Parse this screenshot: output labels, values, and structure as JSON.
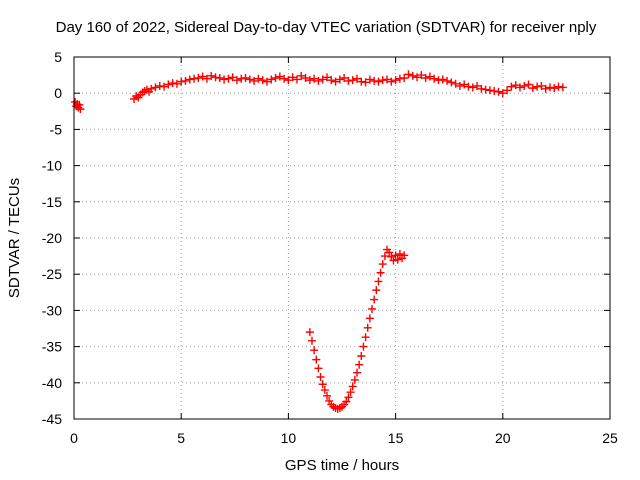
{
  "chart_data": {
    "type": "scatter",
    "title": "Day 160 of 2022, Sidereal Day-to-day VTEC variation (SDTVAR) for receiver nply",
    "xlabel": "GPS time / hours",
    "ylabel": "SDTVAR / TECUs",
    "xlim": [
      0,
      25
    ],
    "ylim": [
      -45,
      5
    ],
    "xticks": [
      0,
      5,
      10,
      15,
      20,
      25
    ],
    "yticks": [
      5,
      0,
      -5,
      -10,
      -15,
      -20,
      -25,
      -30,
      -35,
      -40,
      -45
    ],
    "xtick_labels": [
      "0",
      "5",
      "10",
      "15",
      "20",
      "25"
    ],
    "ytick_labels": [
      "5",
      "0",
      "-5",
      "-10",
      "-15",
      "-20",
      "-25",
      "-30",
      "-35",
      "-40",
      "-45"
    ],
    "grid": true,
    "marker": "plus",
    "series": [
      {
        "name": "SDTVAR",
        "color": "#ff0000",
        "x": [
          0.05,
          0.1,
          0.15,
          0.2,
          0.25,
          0.3,
          2.8,
          2.9,
          3.0,
          3.1,
          3.2,
          3.3,
          3.4,
          3.5,
          3.6,
          3.8,
          4.0,
          4.2,
          4.4,
          4.6,
          4.8,
          5.0,
          5.2,
          5.4,
          5.6,
          5.8,
          6.0,
          6.2,
          6.4,
          6.6,
          6.8,
          7.0,
          7.2,
          7.4,
          7.6,
          7.8,
          8.0,
          8.2,
          8.4,
          8.6,
          8.8,
          9.0,
          9.2,
          9.4,
          9.6,
          9.8,
          10.0,
          10.2,
          10.4,
          10.6,
          10.8,
          11.0,
          11.2,
          11.4,
          11.6,
          11.8,
          12.0,
          12.2,
          12.4,
          12.6,
          12.8,
          13.0,
          13.2,
          13.4,
          13.6,
          13.8,
          14.0,
          14.2,
          14.4,
          14.6,
          14.8,
          15.0,
          15.2,
          15.4,
          15.6,
          15.8,
          16.0,
          16.2,
          16.4,
          16.6,
          16.8,
          17.0,
          17.2,
          17.4,
          17.6,
          17.8,
          18.0,
          18.2,
          18.4,
          18.6,
          18.8,
          19.0,
          19.2,
          19.4,
          19.6,
          19.8,
          20.0,
          20.2,
          20.4,
          20.6,
          20.8,
          21.0,
          21.2,
          21.4,
          21.6,
          21.8,
          22.0,
          22.2,
          22.4,
          22.6,
          22.8,
          11.0,
          11.1,
          11.2,
          11.3,
          11.4,
          11.5,
          11.6,
          11.7,
          11.8,
          11.9,
          12.0,
          12.1,
          12.2,
          12.3,
          12.4,
          12.5,
          12.6,
          12.7,
          12.8,
          12.9,
          13.0,
          13.1,
          13.2,
          13.3,
          13.4,
          13.5,
          13.6,
          13.7,
          13.8,
          13.9,
          14.0,
          14.1,
          14.2,
          14.3,
          14.4,
          14.5,
          14.6,
          14.7,
          14.8,
          14.9,
          15.0,
          15.1,
          15.2,
          15.3,
          15.4
        ],
        "y": [
          -1.2,
          -1.8,
          -1.5,
          -2.0,
          -1.6,
          -2.2,
          -0.8,
          -0.4,
          -0.6,
          -0.2,
          0.1,
          0.3,
          0.5,
          0.2,
          0.6,
          0.8,
          1.0,
          0.9,
          1.2,
          1.4,
          1.3,
          1.6,
          1.7,
          1.9,
          2.0,
          2.1,
          2.3,
          2.0,
          2.4,
          2.2,
          2.1,
          1.9,
          2.0,
          2.2,
          1.8,
          2.0,
          2.1,
          1.9,
          1.7,
          2.0,
          1.8,
          1.6,
          1.9,
          2.1,
          2.3,
          2.0,
          1.8,
          2.2,
          1.9,
          2.4,
          2.1,
          1.8,
          2.0,
          1.7,
          1.9,
          2.2,
          1.8,
          1.6,
          1.9,
          2.1,
          1.7,
          1.8,
          2.0,
          1.6,
          1.5,
          1.9,
          1.7,
          1.6,
          1.8,
          1.9,
          1.6,
          1.8,
          2.0,
          2.1,
          2.6,
          2.4,
          2.2,
          2.5,
          2.1,
          2.3,
          2.0,
          1.8,
          1.9,
          1.7,
          1.5,
          1.3,
          1.0,
          1.2,
          0.9,
          0.8,
          1.0,
          0.6,
          0.5,
          0.4,
          0.3,
          0.2,
          0.0,
          0.4,
          0.9,
          1.1,
          0.8,
          1.0,
          1.2,
          0.7,
          0.9,
          1.0,
          0.6,
          0.8,
          0.7,
          0.9,
          0.8,
          -33.0,
          -34.2,
          -35.5,
          -36.8,
          -38.0,
          -39.2,
          -40.2,
          -41.0,
          -41.8,
          -42.5,
          -43.0,
          -43.3,
          -43.5,
          -43.6,
          -43.5,
          -43.3,
          -43.0,
          -42.6,
          -42.0,
          -41.3,
          -40.5,
          -39.6,
          -38.6,
          -37.5,
          -36.3,
          -35.0,
          -33.7,
          -32.4,
          -31.1,
          -29.8,
          -28.5,
          -27.2,
          -26.0,
          -24.8,
          -23.6,
          -22.5,
          -21.6,
          -22.0,
          -22.6,
          -23.1,
          -22.4,
          -23.0,
          -22.2,
          -22.8,
          -22.4
        ]
      }
    ]
  }
}
